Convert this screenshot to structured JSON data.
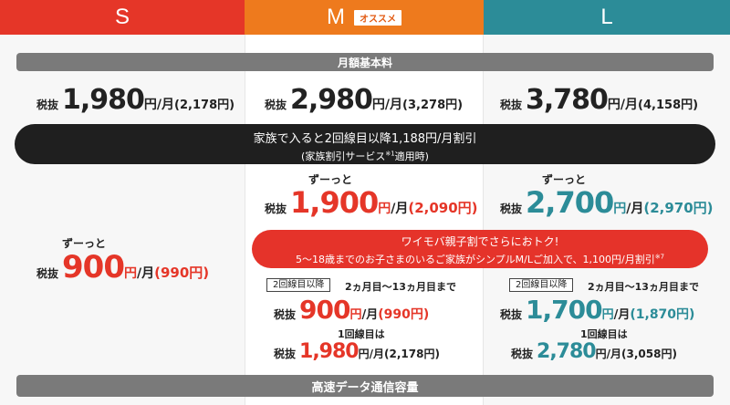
{
  "headers": {
    "s": "S",
    "m": "M",
    "m_badge": "オススメ",
    "l": "L"
  },
  "section_monthly": "月額基本料",
  "section_data": "高速データ通信容量",
  "tax_label": "税抜",
  "base_prices": {
    "s": {
      "value": "1,980",
      "unit": "円/月",
      "incl": "(2,178円)"
    },
    "m": {
      "value": "2,980",
      "unit": "円/月",
      "incl": "(3,278円)"
    },
    "l": {
      "value": "3,780",
      "unit": "円/月",
      "incl": "(4,158円)"
    }
  },
  "family_banner": {
    "line1": "家族で入ると2回線目以降1,188円/月割引",
    "line2_pre": "(家族割引サービス",
    "line2_sup": "※1",
    "line2_post": "適用時)"
  },
  "forever_label": "ずーっと",
  "family_prices": {
    "s": {
      "value": "900",
      "unit": "円/月",
      "incl": "(990円)"
    },
    "m": {
      "value": "1,900",
      "unit": "円/月",
      "incl": "(2,090円)"
    },
    "l": {
      "value": "2,700",
      "unit": "円/月",
      "incl": "(2,970円)"
    }
  },
  "oyako_banner": {
    "line1": "ワイモバ親子割でさらにおトク!",
    "line2": "5〜18歳までのお子さまのいるご家族がシンプルM/Lご加入で、1,100円/月割引",
    "line2_sup": "※7"
  },
  "second_line_tag": "2回線目以降",
  "period_label": "2ヵ月目〜13ヵ月目まで",
  "first_line_label": "1回線目は",
  "oyako_prices": {
    "m": {
      "value": "900",
      "unit": "円/月",
      "incl": "(990円)"
    },
    "l": {
      "value": "1,700",
      "unit": "円/月",
      "incl": "(1,870円)"
    }
  },
  "first_line_prices": {
    "m": {
      "value": "1,980",
      "unit": "円/月",
      "incl": "(2,178円)"
    },
    "l": {
      "value": "2,780",
      "unit": "円/月",
      "incl": "(3,058円)"
    }
  },
  "colors": {
    "s": "#e53628",
    "m": "#ee7a1d",
    "l": "#2c8c98",
    "banner_red": "#e5332a",
    "banner_black": "#1f1f1f"
  }
}
